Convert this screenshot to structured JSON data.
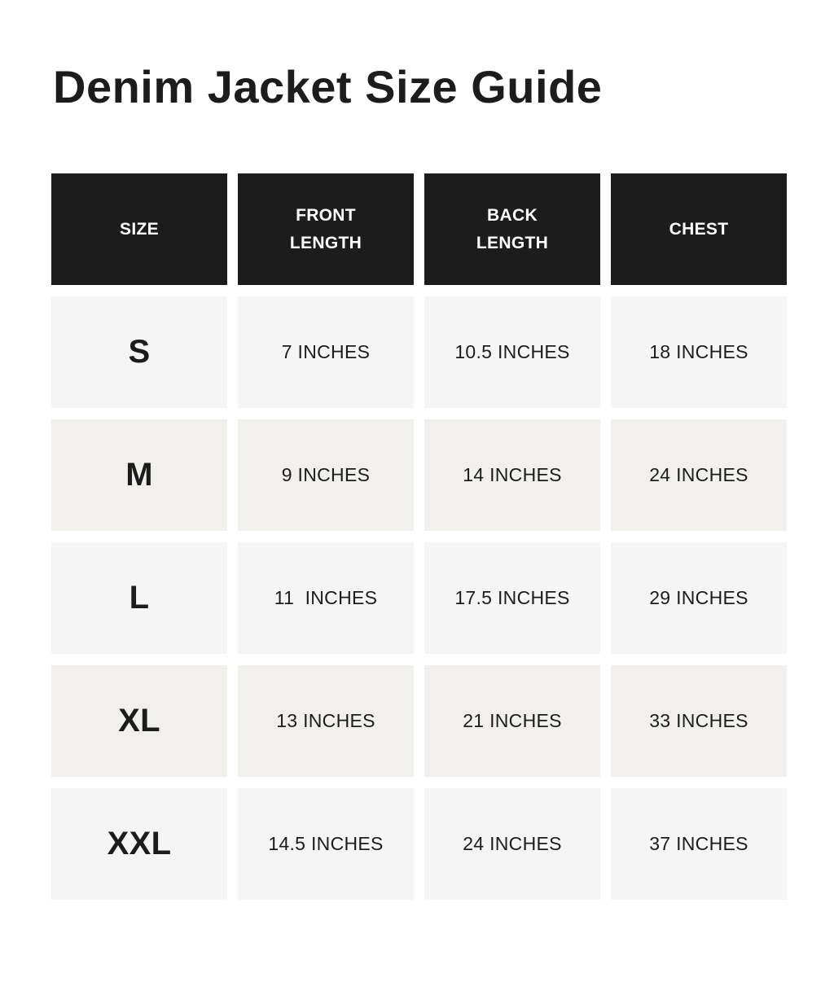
{
  "title": "Denim Jacket Size Guide",
  "headers": [
    "SIZE",
    "FRONT\nLENGTH",
    "BACK\nLENGTH",
    "CHEST"
  ],
  "rows": [
    [
      "S",
      "7 INCHES",
      "10.5 INCHES",
      "18 INCHES"
    ],
    [
      "M",
      "9 INCHES",
      "14 INCHES",
      "24 INCHES"
    ],
    [
      "L",
      "11  INCHES",
      "17.5 INCHES",
      "29 INCHES"
    ],
    [
      "XL",
      "13 INCHES",
      "21 INCHES",
      "33 INCHES"
    ],
    [
      "XXL",
      "14.5 INCHES",
      "24 INCHES",
      "37 INCHES"
    ]
  ],
  "colors": {
    "header_bg": "#1c1c1c",
    "row_light": "#f5f5f5",
    "row_alt": "#f1f0ec"
  }
}
